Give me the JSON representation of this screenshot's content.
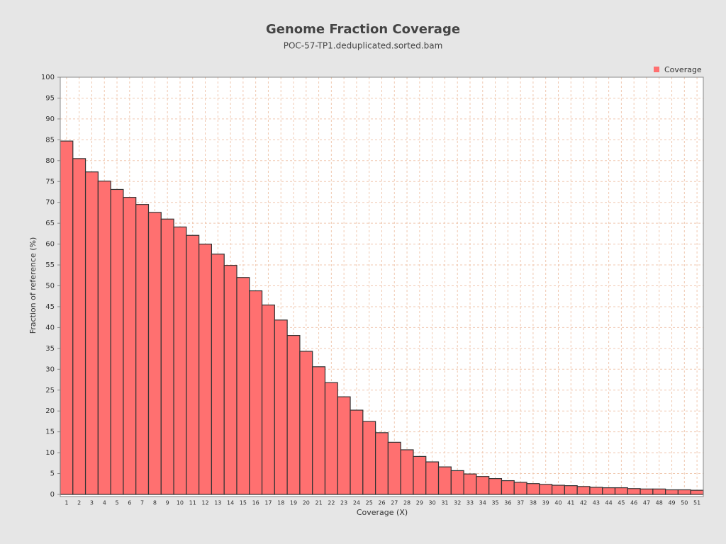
{
  "chart_data": {
    "type": "bar",
    "title": "Genome Fraction Coverage",
    "subtitle": "POC-57-TP1.deduplicated.sorted.bam",
    "x_label": "Coverage (X)",
    "y_label": "Fraction of reference (%)",
    "categories": [
      1,
      2,
      3,
      4,
      5,
      6,
      7,
      8,
      9,
      10,
      11,
      12,
      13,
      14,
      15,
      16,
      17,
      18,
      19,
      20,
      21,
      22,
      23,
      24,
      25,
      26,
      27,
      28,
      29,
      30,
      31,
      32,
      33,
      34,
      35,
      36,
      37,
      38,
      39,
      40,
      41,
      42,
      43,
      44,
      45,
      46,
      47,
      48,
      49,
      50,
      51
    ],
    "series": [
      {
        "name": "Coverage",
        "color": "#ff7070",
        "values": [
          84.7,
          80.5,
          77.3,
          75.1,
          73.1,
          71.2,
          69.5,
          67.6,
          66.0,
          64.1,
          62.1,
          60.0,
          57.6,
          54.9,
          52.0,
          48.8,
          45.4,
          41.8,
          38.1,
          34.3,
          30.6,
          26.8,
          23.4,
          20.2,
          17.5,
          14.8,
          12.5,
          10.7,
          9.1,
          7.8,
          6.6,
          5.7,
          4.9,
          4.3,
          3.8,
          3.3,
          2.9,
          2.6,
          2.4,
          2.2,
          2.1,
          1.9,
          1.7,
          1.6,
          1.6,
          1.4,
          1.3,
          1.3,
          1.1,
          1.1,
          1.0
        ]
      }
    ],
    "ylim": [
      0,
      100
    ],
    "yticks": [
      0,
      5,
      10,
      15,
      20,
      25,
      30,
      35,
      40,
      45,
      50,
      55,
      60,
      65,
      70,
      75,
      80,
      85,
      90,
      95,
      100
    ],
    "grid": true,
    "legend": "top-right"
  }
}
